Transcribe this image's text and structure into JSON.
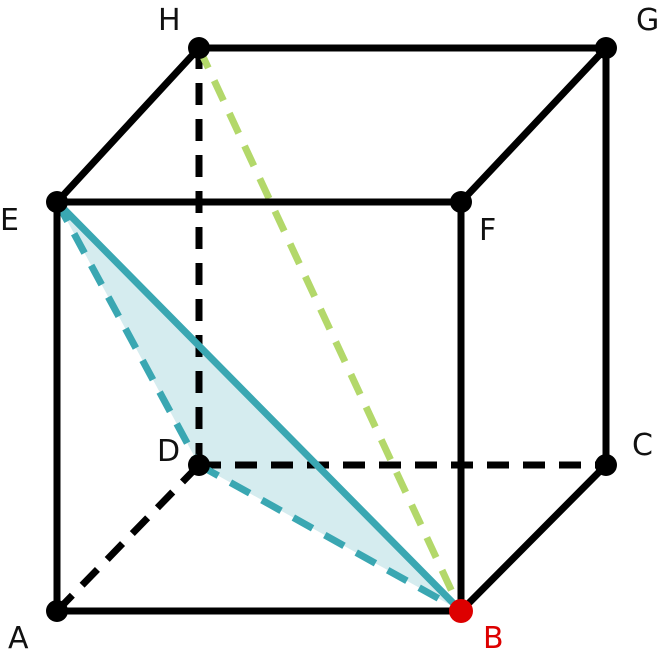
{
  "vertices": {
    "A": {
      "label": "A"
    },
    "B": {
      "label": "B",
      "highlight": true
    },
    "C": {
      "label": "C"
    },
    "D": {
      "label": "D"
    },
    "E": {
      "label": "E"
    },
    "F": {
      "label": "F"
    },
    "G": {
      "label": "G"
    },
    "H": {
      "label": "H"
    }
  },
  "edges": {
    "visible": [
      [
        "A",
        "B"
      ],
      [
        "B",
        "F"
      ],
      [
        "F",
        "E"
      ],
      [
        "E",
        "A"
      ],
      [
        "E",
        "H"
      ],
      [
        "H",
        "G"
      ],
      [
        "G",
        "F"
      ],
      [
        "B",
        "C"
      ],
      [
        "C",
        "G"
      ]
    ],
    "hidden": [
      [
        "A",
        "D"
      ],
      [
        "D",
        "C"
      ],
      [
        "D",
        "H"
      ]
    ]
  },
  "triangle": {
    "vertices": [
      "E",
      "B",
      "D"
    ],
    "solid_edges": [
      [
        "E",
        "B"
      ]
    ],
    "dashed_edges": [
      [
        "E",
        "D"
      ],
      [
        "D",
        "B"
      ]
    ]
  },
  "diagonal": {
    "from": "H",
    "to": "B",
    "style": "dashed"
  },
  "colors": {
    "edge": "#000000",
    "triangle_stroke": "#3aa7b2",
    "triangle_fill": "#d5ecef",
    "diagonal": "#b3d86a",
    "highlight_point": "#dd0000",
    "vertex_dot": "#000000"
  }
}
